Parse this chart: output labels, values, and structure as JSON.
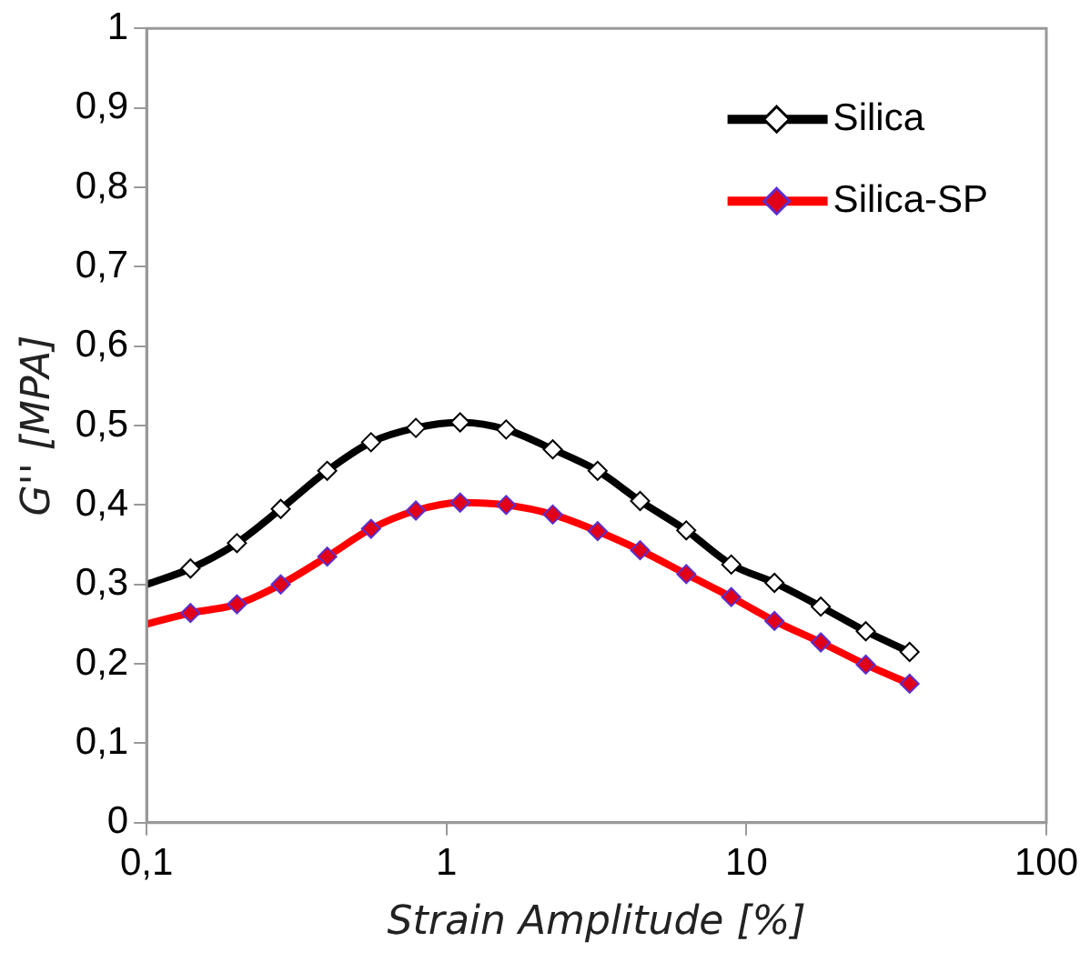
{
  "chart_data": {
    "type": "line",
    "xlabel": "Strain Amplitude [%]",
    "ylabel": "G'' [MPA]",
    "x": [
      0.1,
      0.14,
      0.2,
      0.28,
      0.4,
      0.56,
      0.79,
      1.11,
      1.58,
      2.26,
      3.19,
      4.42,
      6.3,
      8.9,
      12.4,
      17.7,
      25,
      35
    ],
    "series": [
      {
        "name": "Silica",
        "color": "#000000",
        "values": [
          0.3,
          0.32,
          0.352,
          0.395,
          0.443,
          0.479,
          0.497,
          0.504,
          0.495,
          0.47,
          0.443,
          0.405,
          0.368,
          0.325,
          0.302,
          0.272,
          0.241,
          0.215
        ]
      },
      {
        "name": "Silica-SP",
        "color": "#ff0000",
        "values": [
          0.25,
          0.264,
          0.275,
          0.3,
          0.335,
          0.37,
          0.393,
          0.403,
          0.4,
          0.388,
          0.367,
          0.343,
          0.313,
          0.284,
          0.254,
          0.227,
          0.199,
          0.175
        ]
      }
    ],
    "log": "x",
    "xlim": [
      0.1,
      100
    ],
    "xticks": [
      {
        "value": 0.1,
        "label": "0,1"
      },
      1,
      10,
      100
    ],
    "ylim": [
      0,
      1
    ],
    "yticks": [
      0,
      {
        "value": 0.1,
        "label": "0,1"
      },
      {
        "value": 0.2,
        "label": "0,2"
      },
      {
        "value": 0.3,
        "label": "0,3"
      },
      {
        "value": 0.4,
        "label": "0,4"
      },
      {
        "value": 0.5,
        "label": "0,5"
      },
      {
        "value": 0.6,
        "label": "0,6"
      },
      {
        "value": 0.7,
        "label": "0,7"
      },
      {
        "value": 0.8,
        "label": "0,8"
      },
      {
        "value": 0.9,
        "label": "0,9"
      },
      1
    ],
    "grid": false,
    "legend": "top right",
    "marker": "diamond",
    "line_style": "solid"
  }
}
